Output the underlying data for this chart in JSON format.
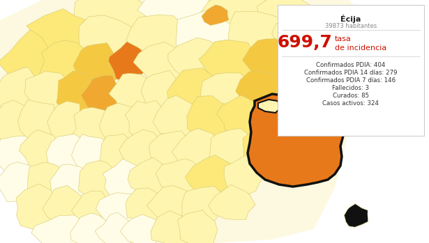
{
  "tooltip": {
    "city": "Écija",
    "habitantes": "39873 habitantes",
    "tasa": "699,7",
    "confirmados_pdia": 404,
    "confirmados_pdia_14": 279,
    "confirmados_pdia_7": 146,
    "fallecidos": 3,
    "curados": 85,
    "casos_activos": 324
  },
  "bg_color": "#ffffff",
  "colors": {
    "c0": "#fffde8",
    "c1": "#fef5b0",
    "c2": "#fce97a",
    "c3": "#f5c842",
    "c4": "#f0a830",
    "c5": "#e8791a",
    "c6": "#111111"
  },
  "municipalities": [
    [
      160,
      18,
      60,
      32,
      "c1",
      false
    ],
    [
      255,
      12,
      50,
      28,
      "c0",
      false
    ],
    [
      340,
      18,
      52,
      28,
      "c1",
      false
    ],
    [
      410,
      22,
      40,
      25,
      "c1",
      false
    ],
    [
      90,
      50,
      48,
      35,
      "c2",
      false
    ],
    [
      155,
      55,
      42,
      32,
      "c1",
      false
    ],
    [
      225,
      52,
      45,
      32,
      "c1",
      false
    ],
    [
      295,
      50,
      45,
      32,
      "c0",
      false
    ],
    [
      368,
      48,
      48,
      32,
      "c1",
      false
    ],
    [
      430,
      50,
      38,
      28,
      "c1",
      false
    ],
    [
      310,
      22,
      18,
      14,
      "c4",
      false
    ],
    [
      418,
      80,
      22,
      18,
      "c4",
      false
    ],
    [
      42,
      90,
      38,
      40,
      "c2",
      false
    ],
    [
      92,
      88,
      35,
      35,
      "c2",
      false
    ],
    [
      140,
      92,
      32,
      30,
      "c3",
      false
    ],
    [
      185,
      90,
      28,
      26,
      "c5",
      false
    ],
    [
      232,
      90,
      35,
      30,
      "c1",
      false
    ],
    [
      280,
      88,
      38,
      30,
      "c1",
      false
    ],
    [
      332,
      88,
      42,
      30,
      "c2",
      false
    ],
    [
      385,
      85,
      35,
      28,
      "c3",
      false
    ],
    [
      428,
      88,
      25,
      22,
      "c4",
      false
    ],
    [
      28,
      135,
      32,
      38,
      "c1",
      false
    ],
    [
      68,
      132,
      30,
      35,
      "c1",
      false
    ],
    [
      108,
      135,
      28,
      32,
      "c3",
      false
    ],
    [
      148,
      138,
      28,
      30,
      "c4",
      false
    ],
    [
      190,
      135,
      30,
      30,
      "c1",
      false
    ],
    [
      232,
      132,
      32,
      30,
      "c1",
      false
    ],
    [
      278,
      130,
      35,
      32,
      "c2",
      false
    ],
    [
      325,
      132,
      38,
      30,
      "c1",
      false
    ],
    [
      372,
      128,
      32,
      28,
      "c3",
      false
    ],
    [
      420,
      130,
      25,
      25,
      "c4",
      false
    ],
    [
      20,
      178,
      30,
      35,
      "c1",
      false
    ],
    [
      58,
      175,
      28,
      32,
      "c1",
      false
    ],
    [
      96,
      178,
      28,
      30,
      "c1",
      false
    ],
    [
      134,
      180,
      28,
      28,
      "c1",
      false
    ],
    [
      172,
      178,
      28,
      28,
      "c1",
      false
    ],
    [
      212,
      175,
      30,
      30,
      "c1",
      false
    ],
    [
      255,
      172,
      32,
      30,
      "c1",
      false
    ],
    [
      300,
      170,
      34,
      30,
      "c2",
      false
    ],
    [
      345,
      168,
      32,
      28,
      "c2",
      false
    ],
    [
      382,
      168,
      28,
      25,
      "c4",
      false
    ],
    [
      22,
      222,
      30,
      32,
      "c0",
      false
    ],
    [
      58,
      218,
      28,
      30,
      "c1",
      false
    ],
    [
      95,
      220,
      28,
      28,
      "c0",
      false
    ],
    [
      130,
      222,
      28,
      28,
      "c0",
      false
    ],
    [
      168,
      220,
      28,
      26,
      "c1",
      false
    ],
    [
      205,
      218,
      30,
      28,
      "c1",
      false
    ],
    [
      245,
      215,
      32,
      28,
      "c1",
      false
    ],
    [
      288,
      215,
      35,
      28,
      "c1",
      false
    ],
    [
      332,
      213,
      35,
      28,
      "c1",
      false
    ],
    [
      375,
      213,
      30,
      26,
      "c2",
      false
    ],
    [
      28,
      262,
      32,
      30,
      "c0",
      false
    ],
    [
      65,
      260,
      30,
      28,
      "c1",
      false
    ],
    [
      102,
      262,
      28,
      28,
      "c0",
      false
    ],
    [
      140,
      260,
      28,
      26,
      "c1",
      false
    ],
    [
      178,
      258,
      30,
      26,
      "c0",
      false
    ],
    [
      218,
      256,
      32,
      28,
      "c1",
      false
    ],
    [
      260,
      253,
      33,
      28,
      "c1",
      false
    ],
    [
      305,
      252,
      35,
      28,
      "c2",
      false
    ],
    [
      348,
      252,
      32,
      26,
      "c1",
      false
    ],
    [
      55,
      300,
      35,
      30,
      "c1",
      false
    ],
    [
      95,
      298,
      30,
      28,
      "c1",
      false
    ],
    [
      133,
      300,
      28,
      26,
      "c1",
      false
    ],
    [
      170,
      298,
      28,
      26,
      "c0",
      false
    ],
    [
      208,
      296,
      30,
      26,
      "c1",
      false
    ],
    [
      248,
      295,
      32,
      26,
      "c1",
      false
    ],
    [
      290,
      294,
      34,
      26,
      "c1",
      false
    ],
    [
      333,
      293,
      32,
      25,
      "c1",
      false
    ],
    [
      88,
      335,
      38,
      26,
      "c0",
      false
    ],
    [
      130,
      334,
      30,
      24,
      "c0",
      false
    ],
    [
      168,
      333,
      28,
      24,
      "c0",
      false
    ],
    [
      205,
      332,
      28,
      24,
      "c0",
      false
    ],
    [
      245,
      330,
      30,
      24,
      "c1",
      false
    ],
    [
      285,
      330,
      32,
      24,
      "c1",
      false
    ],
    [
      410,
      190,
      70,
      65,
      "c5",
      true
    ],
    [
      452,
      132,
      22,
      18,
      "c5",
      false
    ],
    [
      448,
      240,
      20,
      16,
      "c5",
      false
    ],
    [
      510,
      310,
      18,
      15,
      "c6",
      false
    ],
    [
      455,
      168,
      20,
      16,
      "c4",
      false
    ]
  ]
}
